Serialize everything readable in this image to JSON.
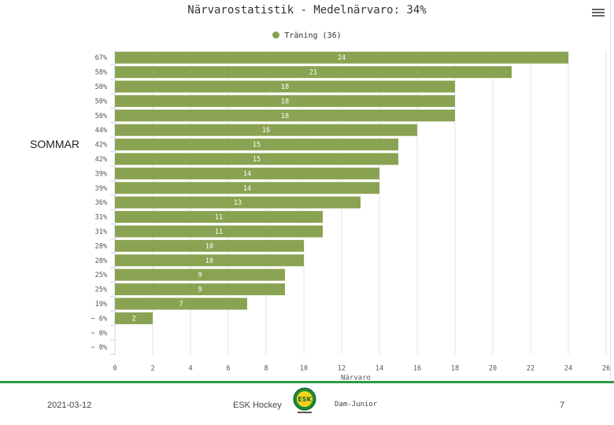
{
  "chart_data": {
    "type": "bar",
    "orientation": "horizontal",
    "title": "Närvarostatistik - Medelnärvaro: 34%",
    "legend": {
      "label": "Träning (36)",
      "position": "top-center"
    },
    "categories": [
      "67%",
      "58%",
      "50%",
      "50%",
      "50%",
      "44%",
      "42%",
      "42%",
      "39%",
      "39%",
      "36%",
      "31%",
      "31%",
      "28%",
      "28%",
      "25%",
      "25%",
      "19%",
      "6%",
      "0%",
      "0%"
    ],
    "category_prefixes": [
      "",
      "",
      "",
      "",
      "",
      "",
      "",
      "",
      "",
      "",
      "",
      "",
      "",
      "",
      "",
      "",
      "",
      "",
      "~",
      "~",
      "~"
    ],
    "values": [
      24,
      21,
      18,
      18,
      18,
      16,
      15,
      15,
      14,
      14,
      13,
      11,
      11,
      10,
      10,
      9,
      9,
      7,
      2,
      null,
      null
    ],
    "xlabel": "Närvaro",
    "xlim": [
      0,
      26
    ],
    "xticks": [
      0,
      2,
      4,
      6,
      8,
      10,
      12,
      14,
      16,
      18,
      20,
      22,
      24,
      26
    ],
    "grid": true,
    "bar_color": "#8aa352"
  },
  "side_label": "SOMMAR",
  "menu_icon": "hamburger-menu-icon",
  "footer": {
    "date": "2021-03-12",
    "org": "ESK Hockey",
    "team": "Dam-Junior",
    "page": "7",
    "logo_text": "ESK"
  },
  "colors": {
    "footer_line": "#2e9a4a",
    "bar": "#8aa352",
    "grid": "#e6e6e6"
  }
}
